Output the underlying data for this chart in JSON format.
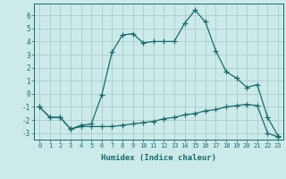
{
  "xlabel": "Humidex (Indice chaleur)",
  "bg_color": "#cceaea",
  "grid_color": "#aacccc",
  "line_color": "#1a6b6b",
  "xlim": [
    -0.5,
    23.5
  ],
  "ylim": [
    -3.5,
    6.9
  ],
  "xticks": [
    0,
    1,
    2,
    3,
    4,
    5,
    6,
    7,
    8,
    9,
    10,
    11,
    12,
    13,
    14,
    15,
    16,
    17,
    18,
    19,
    20,
    21,
    22,
    23
  ],
  "yticks": [
    -3,
    -2,
    -1,
    0,
    1,
    2,
    3,
    4,
    5,
    6
  ],
  "curve1_x": [
    0,
    1,
    2,
    3,
    4,
    5,
    6,
    7,
    8,
    9,
    10,
    11,
    12,
    13,
    14,
    15,
    16,
    17,
    18,
    19,
    20,
    21,
    22,
    23
  ],
  "curve1_y": [
    -1.0,
    -1.8,
    -1.8,
    -2.7,
    -2.4,
    -2.3,
    -0.1,
    3.2,
    4.5,
    4.6,
    3.9,
    4.0,
    4.0,
    4.0,
    5.4,
    6.4,
    5.5,
    3.3,
    1.7,
    1.2,
    0.5,
    0.7,
    -1.8,
    -3.2
  ],
  "curve2_x": [
    0,
    1,
    2,
    3,
    4,
    5,
    6,
    7,
    8,
    9,
    10,
    11,
    12,
    13,
    14,
    15,
    16,
    17,
    18,
    19,
    20,
    21,
    22,
    23
  ],
  "curve2_y": [
    -1.0,
    -1.8,
    -1.8,
    -2.7,
    -2.5,
    -2.5,
    -2.5,
    -2.5,
    -2.4,
    -2.3,
    -2.2,
    -2.1,
    -1.9,
    -1.8,
    -1.6,
    -1.5,
    -1.3,
    -1.2,
    -1.0,
    -0.9,
    -0.8,
    -0.9,
    -3.0,
    -3.3
  ]
}
